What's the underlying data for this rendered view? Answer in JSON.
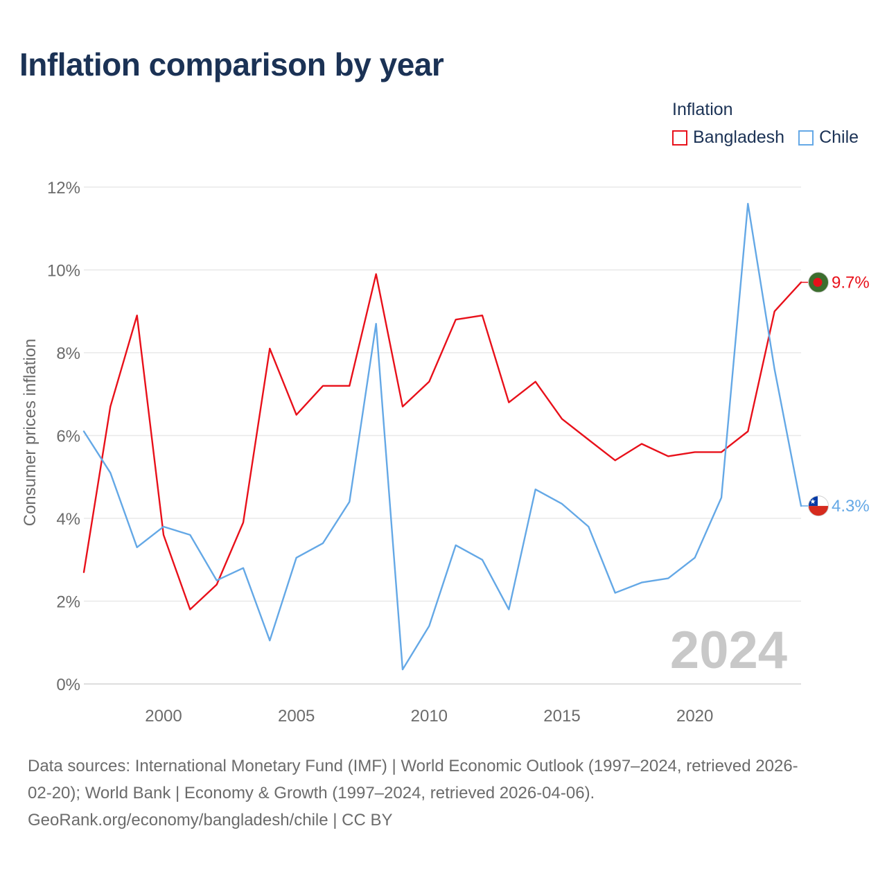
{
  "chart_data": {
    "type": "line",
    "title": "Inflation comparison by year",
    "legend_title": "Inflation",
    "ylabel": "Consumer prices inflation",
    "xlabel": "",
    "x": [
      1997,
      1998,
      1999,
      2000,
      2001,
      2002,
      2003,
      2004,
      2005,
      2006,
      2007,
      2008,
      2009,
      2010,
      2011,
      2012,
      2013,
      2014,
      2015,
      2016,
      2017,
      2018,
      2019,
      2020,
      2021,
      2022,
      2023,
      2024
    ],
    "xlim": [
      1997,
      2024
    ],
    "ylim": [
      0,
      12
    ],
    "yticks": [
      0,
      2,
      4,
      6,
      8,
      10,
      12
    ],
    "ytick_labels": [
      "0%",
      "2%",
      "4%",
      "6%",
      "8%",
      "10%",
      "12%"
    ],
    "xticks": [
      2000,
      2005,
      2010,
      2015,
      2020
    ],
    "xtick_labels": [
      "2000",
      "2005",
      "2010",
      "2015",
      "2020"
    ],
    "grid": true,
    "legend_position": "top-right",
    "year_watermark": "2024",
    "series": [
      {
        "name": "Bangladesh",
        "color": "#e8101a",
        "flag_icon": "bangladesh-flag-icon",
        "end_label": "9.7%",
        "values": [
          2.7,
          6.7,
          8.9,
          3.6,
          1.8,
          2.4,
          3.9,
          8.1,
          6.5,
          7.2,
          7.2,
          9.9,
          6.7,
          7.3,
          8.8,
          8.9,
          6.8,
          7.3,
          6.4,
          5.9,
          5.4,
          5.8,
          5.5,
          5.6,
          5.6,
          6.1,
          9.0,
          9.7
        ]
      },
      {
        "name": "Chile",
        "color": "#64a8e6",
        "flag_icon": "chile-flag-icon",
        "end_label": "4.3%",
        "values": [
          6.1,
          5.1,
          3.3,
          3.8,
          3.6,
          2.5,
          2.8,
          1.05,
          3.05,
          3.4,
          4.4,
          8.7,
          0.35,
          1.4,
          3.35,
          3.0,
          1.8,
          4.7,
          4.35,
          3.8,
          2.2,
          2.45,
          2.55,
          3.05,
          4.5,
          11.6,
          7.6,
          4.3
        ]
      }
    ]
  },
  "footer": {
    "line1": "Data sources: International Monetary Fund (IMF) | World Economic Outlook (1997–2024, retrieved 2026-",
    "line2": "02-20); World Bank | Economy & Growth (1997–2024, retrieved 2026-04-06).",
    "line3": "GeoRank.org/economy/bangladesh/chile | CC BY"
  }
}
